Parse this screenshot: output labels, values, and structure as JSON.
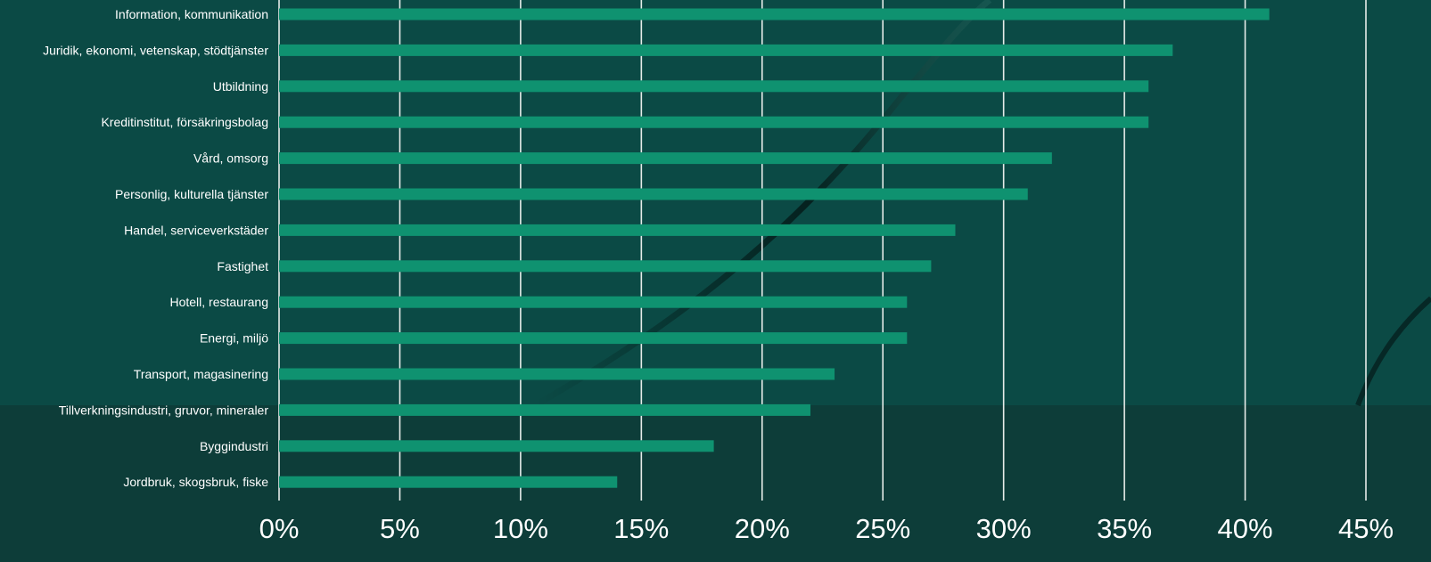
{
  "colors": {
    "background": "#0b4a45",
    "background_lower": "#0d3d39",
    "bar": "#0f9270",
    "grid": "#e6ece9",
    "label_text": "#ffffff"
  },
  "chart_data": {
    "type": "bar",
    "orientation": "horizontal",
    "title": "",
    "xlabel": "",
    "ylabel": "",
    "categories": [
      "Information, kommunikation",
      "Juridik, ekonomi, vetenskap, stödtjänster",
      "Utbildning",
      "Kreditinstitut, försäkringsbolag",
      "Vård, omsorg",
      "Personlig, kulturella tjänster",
      "Handel, serviceverkstäder",
      "Fastighet",
      "Hotell, restaurang",
      "Energi, miljö",
      "Transport, magasinering",
      "Tillverkningsindustri, gruvor, mineraler",
      "Byggindustri",
      "Jordbruk, skogsbruk, fiske"
    ],
    "values": [
      0.41,
      0.37,
      0.36,
      0.36,
      0.32,
      0.31,
      0.28,
      0.27,
      0.26,
      0.26,
      0.23,
      0.22,
      0.18,
      0.14
    ],
    "xlim": [
      0,
      0.45
    ],
    "xticks": [
      0,
      0.05,
      0.1,
      0.15,
      0.2,
      0.25,
      0.3,
      0.35,
      0.4,
      0.45
    ],
    "xtick_labels": [
      "0%",
      "5%",
      "10%",
      "15%",
      "20%",
      "25%",
      "30%",
      "35%",
      "40%",
      "45%"
    ],
    "grid": "vertical",
    "legend": "none"
  }
}
